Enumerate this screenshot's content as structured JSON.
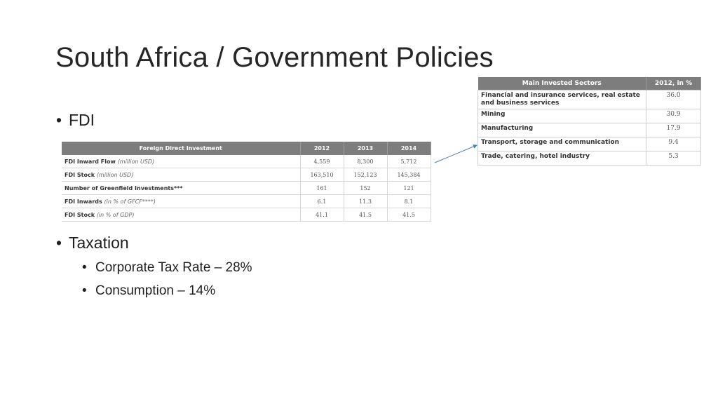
{
  "title": "South Africa / Government Policies",
  "bullets": {
    "fdi": "FDI",
    "taxation": "Taxation",
    "corporate_tax": "Corporate Tax Rate – 28%",
    "consumption": "Consumption – 14%",
    "bullet_glyph": "•"
  },
  "fdi_table": {
    "headers": [
      "Foreign Direct Investment",
      "2012",
      "2013",
      "2014"
    ],
    "rows": [
      {
        "label": "FDI Inward Flow",
        "unit": "(million USD)",
        "values": [
          "4,559",
          "8,300",
          "5,712"
        ]
      },
      {
        "label": "FDI Stock",
        "unit": "(million USD)",
        "values": [
          "163,510",
          "152,123",
          "145,384"
        ]
      },
      {
        "label": "Number of Greenfield Investments***",
        "unit": "",
        "values": [
          "161",
          "152",
          "121"
        ]
      },
      {
        "label": "FDI Inwards",
        "unit": "(in % of GFCF****)",
        "values": [
          "6.1",
          "11.3",
          "8.1"
        ]
      },
      {
        "label": "FDI Stock",
        "unit": "(in % of GDP)",
        "values": [
          "41.1",
          "41.5",
          "41.5"
        ]
      }
    ]
  },
  "sectors_table": {
    "headers": [
      "Main Invested Sectors",
      "2012, in %"
    ],
    "rows": [
      {
        "label": "Financial and insurance services, real estate and business services",
        "value": "36.0"
      },
      {
        "label": "Mining",
        "value": "30.9"
      },
      {
        "label": "Manufacturing",
        "value": "17.9"
      },
      {
        "label": "Transport, storage and communication",
        "value": "9.4"
      },
      {
        "label": "Trade, catering, hotel industry",
        "value": "5.3"
      }
    ]
  },
  "colors": {
    "header_bg": "#7d7d7d",
    "connector": "#4a7ebb",
    "text": "#262626"
  }
}
